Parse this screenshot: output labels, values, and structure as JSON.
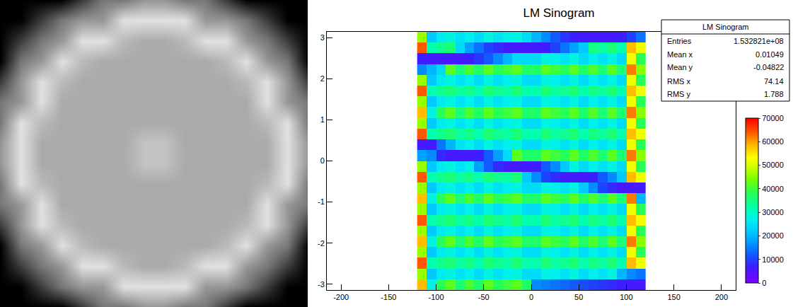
{
  "chart_data": [
    {
      "type": "image",
      "tick_labels": false,
      "zlim": [
        0,
        255
      ],
      "z": [
        [
          0,
          0,
          0,
          0,
          60,
          120,
          120,
          150,
          150,
          120,
          120,
          60,
          0,
          0,
          0,
          0
        ],
        [
          0,
          0,
          60,
          120,
          150,
          150,
          225,
          225,
          225,
          225,
          150,
          150,
          120,
          60,
          0,
          0
        ],
        [
          0,
          60,
          120,
          150,
          225,
          225,
          185,
          170,
          170,
          185,
          225,
          225,
          150,
          120,
          60,
          0
        ],
        [
          0,
          120,
          150,
          225,
          185,
          170,
          170,
          170,
          170,
          170,
          170,
          185,
          225,
          150,
          120,
          0
        ],
        [
          60,
          150,
          225,
          185,
          170,
          170,
          170,
          170,
          170,
          170,
          170,
          170,
          185,
          225,
          150,
          60
        ],
        [
          120,
          150,
          225,
          170,
          170,
          170,
          170,
          170,
          170,
          170,
          170,
          170,
          170,
          225,
          150,
          120
        ],
        [
          120,
          225,
          185,
          170,
          170,
          170,
          170,
          170,
          170,
          170,
          170,
          170,
          170,
          185,
          225,
          120
        ],
        [
          150,
          225,
          170,
          170,
          170,
          170,
          170,
          195,
          195,
          170,
          170,
          170,
          170,
          170,
          225,
          150
        ],
        [
          150,
          225,
          170,
          170,
          170,
          170,
          170,
          195,
          195,
          170,
          170,
          170,
          170,
          170,
          225,
          150
        ],
        [
          120,
          225,
          185,
          170,
          170,
          170,
          170,
          170,
          170,
          170,
          170,
          170,
          170,
          185,
          225,
          120
        ],
        [
          120,
          150,
          225,
          170,
          170,
          170,
          170,
          170,
          170,
          170,
          170,
          170,
          170,
          225,
          150,
          120
        ],
        [
          60,
          150,
          225,
          185,
          170,
          170,
          170,
          170,
          170,
          170,
          170,
          170,
          185,
          225,
          150,
          60
        ],
        [
          0,
          120,
          150,
          225,
          185,
          170,
          170,
          170,
          170,
          170,
          170,
          185,
          225,
          150,
          120,
          0
        ],
        [
          0,
          60,
          120,
          150,
          225,
          225,
          185,
          170,
          170,
          185,
          225,
          225,
          150,
          120,
          60,
          0
        ],
        [
          0,
          0,
          60,
          120,
          150,
          150,
          225,
          225,
          225,
          225,
          150,
          150,
          120,
          60,
          0,
          0
        ],
        [
          0,
          0,
          0,
          0,
          60,
          120,
          120,
          150,
          150,
          120,
          120,
          60,
          0,
          0,
          0,
          0
        ]
      ]
    },
    {
      "type": "heatmap",
      "title": "LM Sinogram",
      "xlim": [
        -215,
        215
      ],
      "xticks": [
        -200,
        -150,
        -100,
        -50,
        0,
        50,
        100,
        150,
        200
      ],
      "ylim": [
        -3.1416,
        3.1416
      ],
      "yticks": [
        -3,
        -2,
        -1,
        0,
        1,
        2,
        3
      ],
      "zlim": [
        0,
        70000
      ],
      "zticks": [
        0,
        10000,
        20000,
        30000,
        40000,
        50000,
        60000,
        70000
      ],
      "x_bins": [
        -120,
        -110,
        -100,
        -90,
        -80,
        -70,
        -60,
        -50,
        -40,
        -30,
        -20,
        -10,
        0,
        10,
        20,
        30,
        40,
        50,
        60,
        70,
        80,
        90,
        100,
        110,
        120
      ],
      "y_bins": [
        -3.1416,
        -2.8798,
        -2.618,
        -2.3562,
        -2.0944,
        -1.8326,
        -1.5708,
        -1.309,
        -1.0472,
        -0.7854,
        -0.5236,
        -0.2618,
        0,
        0.2618,
        0.5236,
        0.7854,
        1.0472,
        1.309,
        1.5708,
        1.8326,
        2.0944,
        2.3562,
        2.618,
        2.8798,
        3.1416
      ],
      "z": [
        [
          58000,
          28000,
          38000,
          42000,
          36000,
          41000,
          37000,
          42000,
          38000,
          40000,
          42000,
          37000,
          16000,
          15000,
          14000,
          13000,
          12000,
          11000,
          10000,
          9000,
          8000,
          7000,
          6000,
          6000
        ],
        [
          46000,
          22000,
          26000,
          28000,
          25000,
          27000,
          24000,
          28000,
          25000,
          27000,
          28000,
          24000,
          24000,
          28000,
          27000,
          25000,
          28000,
          24000,
          27000,
          25000,
          28000,
          20000,
          16000,
          14000
        ],
        [
          64000,
          32000,
          34000,
          36000,
          33000,
          35000,
          32000,
          36000,
          34000,
          33000,
          36000,
          32000,
          32000,
          36000,
          33000,
          34000,
          36000,
          32000,
          35000,
          33000,
          36000,
          32000,
          58000,
          52000
        ],
        [
          46000,
          22000,
          26000,
          28000,
          25000,
          27000,
          24000,
          28000,
          25000,
          27000,
          28000,
          24000,
          24000,
          28000,
          27000,
          25000,
          28000,
          24000,
          27000,
          25000,
          28000,
          24000,
          52000,
          38000
        ],
        [
          58000,
          28000,
          38000,
          42000,
          36000,
          41000,
          37000,
          42000,
          38000,
          40000,
          42000,
          37000,
          37000,
          42000,
          40000,
          38000,
          42000,
          37000,
          41000,
          36000,
          42000,
          36000,
          62000,
          45000
        ],
        [
          46000,
          22000,
          26000,
          28000,
          25000,
          27000,
          24000,
          28000,
          25000,
          27000,
          28000,
          24000,
          24000,
          28000,
          27000,
          25000,
          28000,
          24000,
          27000,
          25000,
          28000,
          24000,
          52000,
          38000
        ],
        [
          64000,
          32000,
          34000,
          36000,
          33000,
          35000,
          32000,
          36000,
          34000,
          33000,
          36000,
          32000,
          32000,
          36000,
          33000,
          34000,
          36000,
          32000,
          35000,
          33000,
          36000,
          32000,
          58000,
          52000
        ],
        [
          46000,
          22000,
          26000,
          28000,
          25000,
          27000,
          24000,
          28000,
          25000,
          27000,
          28000,
          24000,
          24000,
          28000,
          27000,
          25000,
          28000,
          24000,
          27000,
          25000,
          28000,
          24000,
          52000,
          38000
        ],
        [
          58000,
          28000,
          38000,
          42000,
          36000,
          41000,
          37000,
          42000,
          38000,
          40000,
          42000,
          37000,
          37000,
          42000,
          40000,
          38000,
          42000,
          37000,
          41000,
          36000,
          42000,
          36000,
          62000,
          20000
        ],
        [
          46000,
          22000,
          26000,
          28000,
          25000,
          27000,
          24000,
          28000,
          25000,
          27000,
          28000,
          24000,
          24000,
          28000,
          27000,
          25000,
          28000,
          22000,
          16000,
          10000,
          8000,
          6000,
          6000,
          6000
        ],
        [
          64000,
          32000,
          34000,
          36000,
          33000,
          35000,
          32000,
          36000,
          34000,
          33000,
          36000,
          22000,
          16000,
          10000,
          8000,
          6000,
          6000,
          6000,
          7000,
          12000,
          16000,
          22000,
          58000,
          52000
        ],
        [
          46000,
          22000,
          26000,
          28000,
          25000,
          27000,
          18000,
          12000,
          8000,
          6000,
          6000,
          6000,
          7000,
          12000,
          16000,
          22000,
          28000,
          24000,
          27000,
          25000,
          28000,
          24000,
          52000,
          38000
        ],
        [
          18000,
          16000,
          8000,
          6000,
          6000,
          6000,
          7000,
          12000,
          18000,
          24000,
          42000,
          37000,
          37000,
          42000,
          40000,
          38000,
          42000,
          37000,
          41000,
          36000,
          42000,
          36000,
          62000,
          45000
        ],
        [
          6000,
          6000,
          14000,
          20000,
          25000,
          27000,
          24000,
          28000,
          25000,
          27000,
          28000,
          24000,
          24000,
          28000,
          27000,
          25000,
          28000,
          24000,
          27000,
          25000,
          28000,
          24000,
          52000,
          38000
        ],
        [
          64000,
          32000,
          34000,
          36000,
          33000,
          35000,
          32000,
          36000,
          34000,
          33000,
          36000,
          32000,
          32000,
          36000,
          33000,
          34000,
          36000,
          32000,
          35000,
          33000,
          36000,
          32000,
          58000,
          52000
        ],
        [
          46000,
          22000,
          26000,
          28000,
          25000,
          27000,
          24000,
          28000,
          25000,
          27000,
          28000,
          24000,
          24000,
          28000,
          27000,
          25000,
          28000,
          24000,
          27000,
          25000,
          28000,
          24000,
          52000,
          38000
        ],
        [
          58000,
          28000,
          38000,
          42000,
          36000,
          41000,
          37000,
          42000,
          38000,
          40000,
          42000,
          37000,
          37000,
          42000,
          40000,
          38000,
          42000,
          37000,
          41000,
          36000,
          42000,
          36000,
          62000,
          45000
        ],
        [
          46000,
          22000,
          26000,
          28000,
          25000,
          27000,
          24000,
          28000,
          25000,
          27000,
          28000,
          24000,
          24000,
          28000,
          27000,
          25000,
          28000,
          24000,
          27000,
          25000,
          28000,
          24000,
          52000,
          38000
        ],
        [
          64000,
          32000,
          34000,
          36000,
          33000,
          35000,
          32000,
          36000,
          34000,
          33000,
          36000,
          32000,
          32000,
          36000,
          33000,
          34000,
          36000,
          32000,
          35000,
          33000,
          36000,
          32000,
          58000,
          52000
        ],
        [
          46000,
          22000,
          26000,
          28000,
          25000,
          27000,
          24000,
          28000,
          25000,
          27000,
          28000,
          24000,
          24000,
          28000,
          27000,
          25000,
          28000,
          24000,
          27000,
          25000,
          28000,
          24000,
          52000,
          38000
        ],
        [
          16000,
          20000,
          24000,
          42000,
          36000,
          41000,
          37000,
          42000,
          38000,
          40000,
          42000,
          37000,
          37000,
          42000,
          40000,
          38000,
          42000,
          37000,
          41000,
          36000,
          42000,
          36000,
          62000,
          45000
        ],
        [
          7000,
          6000,
          6000,
          6000,
          6000,
          7000,
          9000,
          12000,
          16000,
          20000,
          24000,
          24000,
          24000,
          28000,
          27000,
          25000,
          28000,
          24000,
          27000,
          25000,
          28000,
          24000,
          52000,
          38000
        ],
        [
          64000,
          32000,
          34000,
          36000,
          24000,
          18000,
          14000,
          10000,
          8000,
          6000,
          6000,
          6000,
          6000,
          7000,
          10000,
          14000,
          18000,
          22000,
          35000,
          33000,
          36000,
          32000,
          58000,
          52000
        ],
        [
          46000,
          22000,
          26000,
          28000,
          25000,
          27000,
          24000,
          28000,
          25000,
          27000,
          28000,
          24000,
          20000,
          16000,
          12000,
          9000,
          7000,
          6000,
          6000,
          6000,
          6000,
          7000,
          10000,
          14000
        ]
      ],
      "stats": {
        "title": "LM Sinogram",
        "rows": [
          {
            "label": "Entries",
            "value": "1.532821e+08"
          },
          {
            "label": "Mean x",
            "value": "0.01049"
          },
          {
            "label": "Mean y",
            "value": "-0.04822"
          },
          {
            "label": "RMS x",
            "value": "74.14"
          },
          {
            "label": "RMS y",
            "value": "1.788"
          }
        ]
      }
    }
  ]
}
